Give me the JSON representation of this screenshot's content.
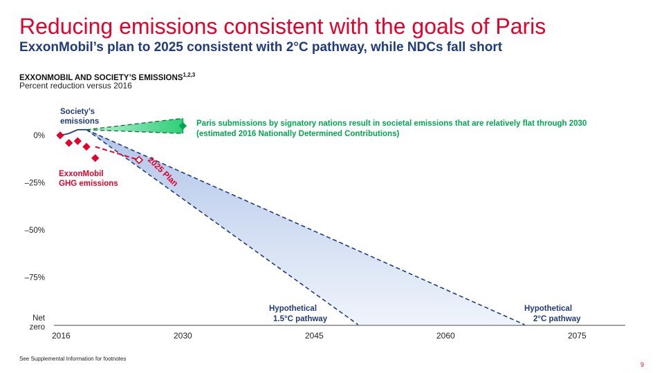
{
  "page": {
    "title": "Reducing emissions consistent with the goals of Paris",
    "subtitle": "ExxonMobil’s plan to 2025 consistent with 2°C pathway, while NDCs fall short",
    "chart_heading": "EXXONMOBIL AND SOCIETY’S EMISSIONS",
    "chart_heading_sup": "1,2,3",
    "chart_subheading": "Percent reduction versus 2016",
    "footnote": "See Supplemental Information for footnotes",
    "page_number": "9"
  },
  "colors": {
    "red": "#e4002b",
    "navy": "#1f3b7a",
    "green": "#00a651",
    "green_fill": "#2ecf7a",
    "band_fill": "#c9d6f0"
  },
  "chart_data": {
    "type": "line",
    "x_ticks": [
      2016,
      2030,
      2045,
      2060,
      2075
    ],
    "x_tick_labels": [
      "2016",
      "2030",
      "2045",
      "2060",
      "2075"
    ],
    "y_ticks": [
      0,
      -25,
      -50,
      -75,
      -100
    ],
    "y_tick_labels": [
      "0%",
      "–25%",
      "–50%",
      "–75%",
      "Net\nzero"
    ],
    "xlim": [
      2016,
      2080
    ],
    "ylim": [
      -100,
      10
    ],
    "series": [
      {
        "name": "Society’s emissions",
        "style": "line",
        "x": [
          2016,
          2017,
          2018,
          2019
        ],
        "y": [
          0,
          1,
          3,
          3
        ]
      },
      {
        "name": "ExxonMobil GHG emissions",
        "style": "markers",
        "x": [
          2016,
          2017,
          2018,
          2019,
          2020
        ],
        "y": [
          0,
          -4,
          -3,
          -6,
          -12
        ]
      },
      {
        "name": "2025 Plan",
        "style": "dashed",
        "x": [
          2020,
          2025
        ],
        "y": [
          -6,
          -13
        ]
      }
    ],
    "bands": [
      {
        "name": "Paris submissions",
        "upper": {
          "x": [
            2019,
            2030
          ],
          "y": [
            3,
            9
          ]
        },
        "lower": {
          "x": [
            2019,
            2030
          ],
          "y": [
            3,
            1
          ]
        }
      },
      {
        "name": "Hypothetical pathways",
        "upper": {
          "x": [
            2019,
            2069
          ],
          "y": [
            3,
            -100
          ]
        },
        "lower": {
          "x": [
            2019,
            2050
          ],
          "y": [
            3,
            -100
          ]
        }
      }
    ],
    "annotations": {
      "society": "Society’s\nemissions",
      "exxon": "ExxonMobil\nGHG emissions",
      "plan": "2025 Plan",
      "paris": "Paris submissions by signatory nations result in societal emissions that are relatively flat through 2030\n(estimated 2016 Nationally Determined Contributions)",
      "pathway_15": "Hypothetical\n1.5°C pathway",
      "pathway_2": "Hypothetical\n2°C pathway"
    }
  }
}
